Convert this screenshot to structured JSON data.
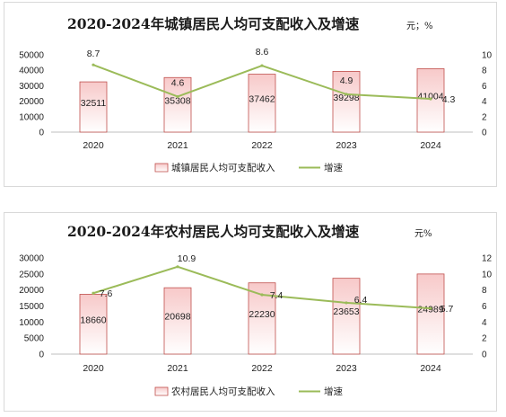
{
  "chart_data": [
    {
      "type": "bar",
      "title": "2020-2024年城镇居民人均可支配收入及增速",
      "unit": "元；%",
      "categories": [
        "2020",
        "2021",
        "2022",
        "2023",
        "2024"
      ],
      "series": [
        {
          "name": "城镇居民人均可支配收入",
          "type": "bar",
          "axis": "left",
          "values": [
            32511,
            35308,
            37462,
            39298,
            41004
          ]
        },
        {
          "name": "增速",
          "type": "line",
          "axis": "right",
          "values": [
            8.7,
            4.6,
            8.6,
            4.9,
            4.3
          ]
        }
      ],
      "ylim_left": [
        0,
        50000
      ],
      "yticks_left": [
        "0",
        "10000",
        "20000",
        "30000",
        "40000",
        "50000"
      ],
      "ylim_right": [
        0,
        10
      ],
      "yticks_right": [
        "0",
        "2",
        "4",
        "6",
        "8",
        "10"
      ],
      "legend": "bottom",
      "grid": false,
      "colors": {
        "bar_top": "#f7c9c9",
        "bar_bottom": "#ffffff",
        "bar_edge": "#c0504d",
        "line": "#9bbb59"
      }
    },
    {
      "type": "bar",
      "title": "2020-2024年农村居民人均可支配收入及增速",
      "unit": "元%",
      "categories": [
        "2020",
        "2021",
        "2022",
        "2023",
        "2024"
      ],
      "series": [
        {
          "name": "农村居民人均可支配收入",
          "type": "bar",
          "axis": "left",
          "values": [
            18660,
            20698,
            22230,
            23653,
            24989
          ]
        },
        {
          "name": "增速",
          "type": "line",
          "axis": "right",
          "values": [
            7.6,
            10.9,
            7.4,
            6.4,
            5.7
          ]
        }
      ],
      "ylim_left": [
        0,
        30000
      ],
      "yticks_left": [
        "0",
        "5000",
        "10000",
        "15000",
        "20000",
        "25000",
        "30000"
      ],
      "ylim_right": [
        0,
        12
      ],
      "yticks_right": [
        "0",
        "2",
        "4",
        "6",
        "8",
        "10",
        "12"
      ],
      "legend": "bottom",
      "grid": false,
      "colors": {
        "bar_top": "#f7c9c9",
        "bar_bottom": "#ffffff",
        "bar_edge": "#c0504d",
        "line": "#9bbb59"
      }
    }
  ]
}
